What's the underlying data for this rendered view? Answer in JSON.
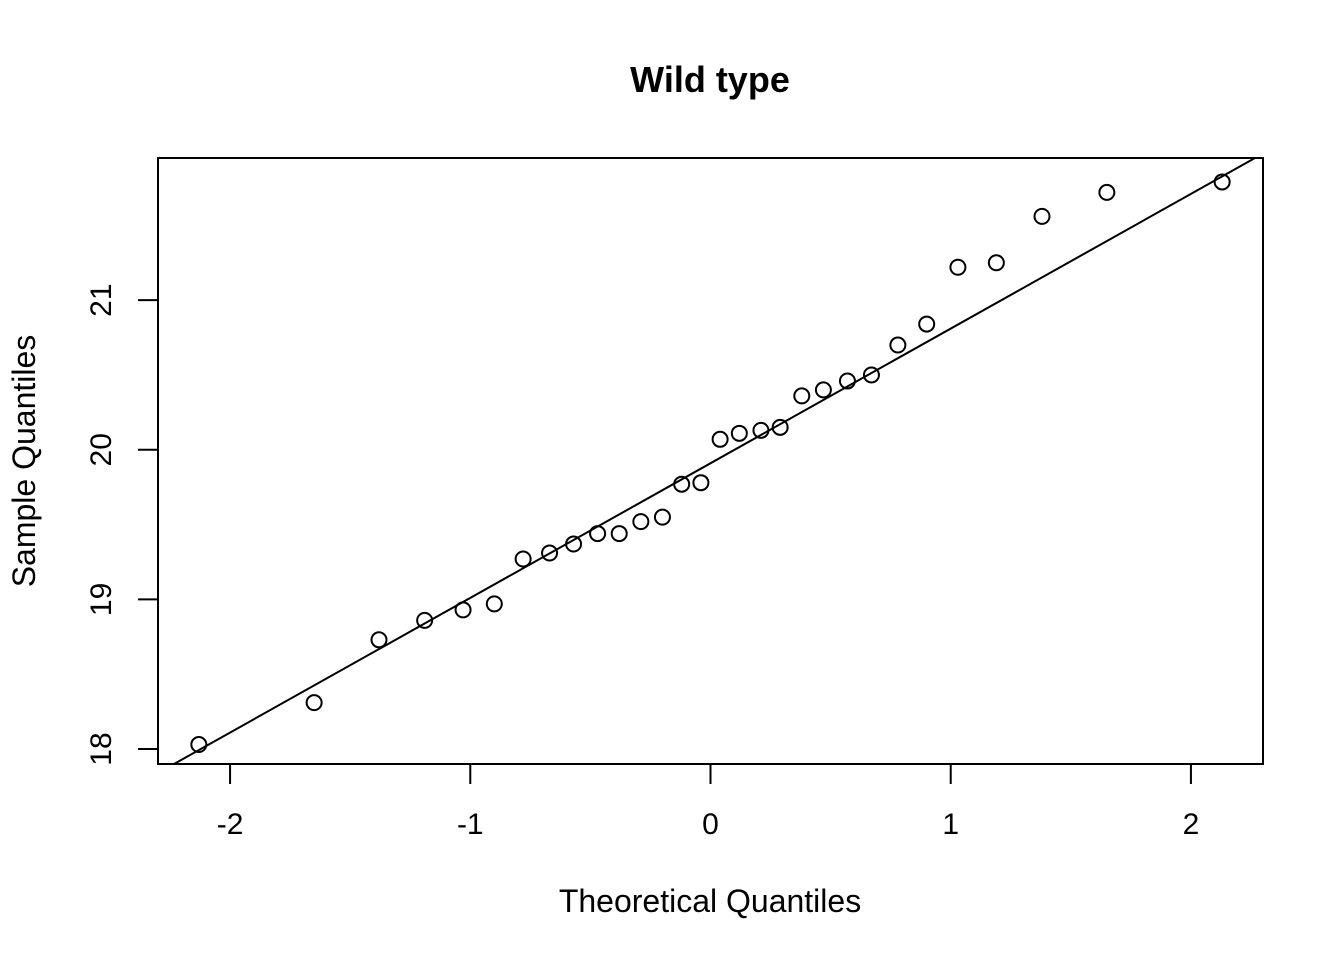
{
  "chart_data": {
    "type": "scatter",
    "title": "Wild type",
    "xlabel": "Theoretical Quantiles",
    "ylabel": "Sample Quantiles",
    "xlim": [
      -2.3,
      2.3
    ],
    "ylim": [
      17.9,
      21.95
    ],
    "x_ticks": [
      -2,
      -1,
      0,
      1,
      2
    ],
    "x_tick_labels": [
      "-2",
      "-1",
      "0",
      "1",
      "2"
    ],
    "y_ticks": [
      18,
      19,
      20,
      21
    ],
    "y_tick_labels": [
      "18",
      "19",
      "20",
      "21"
    ],
    "grid": false,
    "marker": "open-circle",
    "colors": {
      "points": "#000000",
      "line": "#000000",
      "background": "#ffffff"
    },
    "series": [
      {
        "x": [
          -2.13,
          -1.65,
          -1.38,
          -1.19,
          -1.03,
          -0.9,
          -0.78,
          -0.67,
          -0.57,
          -0.47,
          -0.38,
          -0.29,
          -0.2,
          -0.12,
          -0.04,
          0.04,
          0.12,
          0.21,
          0.29,
          0.38,
          0.47,
          0.57,
          0.67,
          0.78,
          0.9,
          1.03,
          1.19,
          1.38,
          1.65,
          2.13
        ],
        "y": [
          18.03,
          18.31,
          18.73,
          18.86,
          18.93,
          18.97,
          19.27,
          19.31,
          19.37,
          19.44,
          19.44,
          19.52,
          19.55,
          19.77,
          19.78,
          20.07,
          20.11,
          20.13,
          20.15,
          20.36,
          20.4,
          20.46,
          20.5,
          20.7,
          20.84,
          21.22,
          21.25,
          21.56,
          21.72,
          21.79
        ]
      }
    ],
    "reference_line": {
      "intercept": 19.91,
      "slope": 0.9
    }
  }
}
